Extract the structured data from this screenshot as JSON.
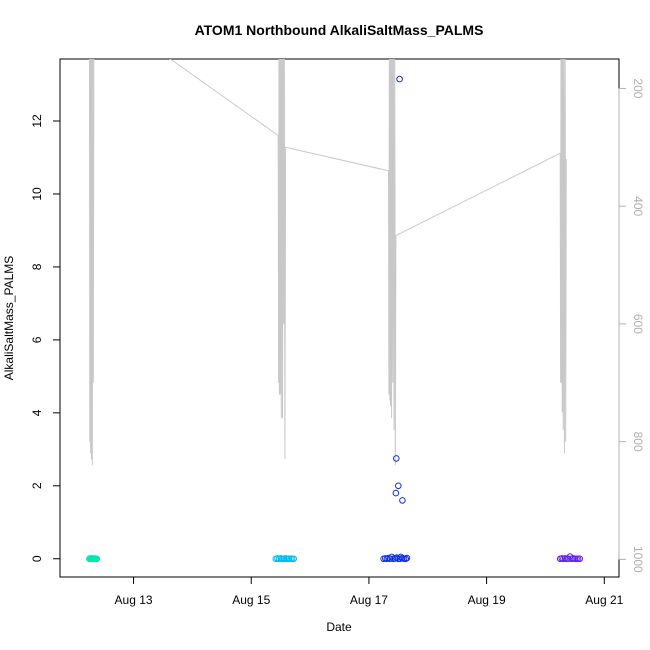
{
  "chart_data": {
    "type": "scatter",
    "title": "ATOM1 Northbound AlkaliSaltMass_PALMS",
    "xlabel": "Date",
    "ylabel": "AlkaliSaltMass_PALMS",
    "xlim": [
      "2018-08-11T18:00",
      "2018-08-21T06:00"
    ],
    "ylim": [
      -0.5,
      13.7
    ],
    "y_ticks": [
      0,
      2,
      4,
      6,
      8,
      10,
      12
    ],
    "x_ticks": [
      {
        "date": "2018-08-13",
        "label": "Aug 13"
      },
      {
        "date": "2018-08-15",
        "label": "Aug 15"
      },
      {
        "date": "2018-08-17",
        "label": "Aug 17"
      },
      {
        "date": "2018-08-19",
        "label": "Aug 19"
      },
      {
        "date": "2018-08-21",
        "label": "Aug 21"
      }
    ],
    "secondary_axis": {
      "side": "right",
      "reversed": true,
      "ylim": [
        1030,
        150
      ],
      "ticks": [
        200,
        400,
        600,
        800,
        1000
      ],
      "color": "#b0b0b0"
    },
    "secondary_line": {
      "color": "#c8c8c8",
      "points": [
        [
          "2018-08-12T06:00",
          50
        ],
        [
          "2018-08-12T06:10",
          800
        ],
        [
          "2018-08-12T06:20",
          70
        ],
        [
          "2018-08-12T06:30",
          820
        ],
        [
          "2018-08-12T06:40",
          90
        ],
        [
          "2018-08-12T06:50",
          830
        ],
        [
          "2018-08-12T07:00",
          100
        ],
        [
          "2018-08-12T07:10",
          840
        ],
        [
          "2018-08-12T07:20",
          110
        ],
        [
          "2018-08-12T07:35",
          700
        ],
        [
          "2018-08-12T07:50",
          100
        ],
        [
          "2018-08-13T15:00",
          150
        ],
        [
          "2018-08-15T11:00",
          280
        ],
        [
          "2018-08-15T11:10",
          700
        ],
        [
          "2018-08-15T11:20",
          90
        ],
        [
          "2018-08-15T11:30",
          720
        ],
        [
          "2018-08-15T11:40",
          80
        ],
        [
          "2018-08-15T11:50",
          720
        ],
        [
          "2018-08-15T12:00",
          90
        ],
        [
          "2018-08-15T12:15",
          760
        ],
        [
          "2018-08-15T12:30",
          80
        ],
        [
          "2018-08-15T12:45",
          760
        ],
        [
          "2018-08-15T13:00",
          90
        ],
        [
          "2018-08-15T13:15",
          600
        ],
        [
          "2018-08-15T13:30",
          80
        ],
        [
          "2018-08-15T13:45",
          830
        ],
        [
          "2018-08-15T14:00",
          300
        ],
        [
          "2018-08-17T08:00",
          340
        ],
        [
          "2018-08-17T08:10",
          720
        ],
        [
          "2018-08-17T08:20",
          70
        ],
        [
          "2018-08-17T08:30",
          730
        ],
        [
          "2018-08-17T08:40",
          80
        ],
        [
          "2018-08-17T08:50",
          740
        ],
        [
          "2018-08-17T09:00",
          60
        ],
        [
          "2018-08-17T09:15",
          760
        ],
        [
          "2018-08-17T09:30",
          80
        ],
        [
          "2018-08-17T09:45",
          700
        ],
        [
          "2018-08-17T10:00",
          90
        ],
        [
          "2018-08-17T10:15",
          780
        ],
        [
          "2018-08-17T10:30",
          70
        ],
        [
          "2018-08-17T10:45",
          840
        ],
        [
          "2018-08-17T11:00",
          450
        ],
        [
          "2018-08-20T06:00",
          310
        ],
        [
          "2018-08-20T06:10",
          700
        ],
        [
          "2018-08-20T06:20",
          90
        ],
        [
          "2018-08-20T06:30",
          700
        ],
        [
          "2018-08-20T06:40",
          80
        ],
        [
          "2018-08-20T06:50",
          750
        ],
        [
          "2018-08-20T07:00",
          100
        ],
        [
          "2018-08-20T07:15",
          780
        ],
        [
          "2018-08-20T07:30",
          90
        ],
        [
          "2018-08-20T07:45",
          820
        ],
        [
          "2018-08-20T08:00",
          80
        ],
        [
          "2018-08-20T08:15",
          800
        ],
        [
          "2018-08-20T08:30",
          320
        ]
      ]
    },
    "series": [
      {
        "color": "#00e5b0",
        "points": [
          [
            "2018-08-12T06:00",
            0.0
          ],
          [
            "2018-08-12T06:20",
            0.01
          ],
          [
            "2018-08-12T06:40",
            0.0
          ],
          [
            "2018-08-12T07:00",
            0.01
          ],
          [
            "2018-08-12T07:20",
            0.0
          ],
          [
            "2018-08-12T07:40",
            0.0
          ],
          [
            "2018-08-12T08:00",
            0.01
          ],
          [
            "2018-08-12T08:20",
            0.0
          ],
          [
            "2018-08-12T08:40",
            0.0
          ],
          [
            "2018-08-12T09:00",
            0.0
          ]
        ]
      },
      {
        "color": "#00b8f0",
        "points": [
          [
            "2018-08-15T10:00",
            0.0
          ],
          [
            "2018-08-15T10:40",
            0.01
          ],
          [
            "2018-08-15T11:20",
            0.0
          ],
          [
            "2018-08-15T12:00",
            0.01
          ],
          [
            "2018-08-15T12:40",
            0.0
          ],
          [
            "2018-08-15T13:20",
            0.0
          ],
          [
            "2018-08-15T14:00",
            0.01
          ],
          [
            "2018-08-15T14:40",
            0.0
          ],
          [
            "2018-08-15T15:20",
            0.0
          ],
          [
            "2018-08-15T16:00",
            0.0
          ],
          [
            "2018-08-15T16:40",
            0.0
          ],
          [
            "2018-08-15T17:20",
            0.0
          ]
        ]
      },
      {
        "color": "#1030e0",
        "points": [
          [
            "2018-08-17T06:00",
            0.0
          ],
          [
            "2018-08-17T06:40",
            0.01
          ],
          [
            "2018-08-17T07:20",
            0.0
          ],
          [
            "2018-08-17T08:00",
            0.02
          ],
          [
            "2018-08-17T08:40",
            0.0
          ],
          [
            "2018-08-17T09:20",
            0.05
          ],
          [
            "2018-08-17T10:00",
            0.0
          ],
          [
            "2018-08-17T10:40",
            0.01
          ],
          [
            "2018-08-17T11:20",
            0.03
          ],
          [
            "2018-08-17T12:00",
            0.0
          ],
          [
            "2018-08-17T12:40",
            0.0
          ],
          [
            "2018-08-17T13:00",
            0.05
          ],
          [
            "2018-08-17T13:40",
            0.02
          ],
          [
            "2018-08-17T14:20",
            0.0
          ],
          [
            "2018-08-17T15:00",
            0.0
          ],
          [
            "2018-08-17T15:30",
            0.02
          ],
          [
            "2018-08-17T12:30",
            13.15
          ],
          [
            "2018-08-17T11:10",
            2.75
          ],
          [
            "2018-08-17T12:00",
            2.0
          ],
          [
            "2018-08-17T11:00",
            1.8
          ],
          [
            "2018-08-17T13:40",
            1.6
          ]
        ]
      },
      {
        "color": "#6020e8",
        "points": [
          [
            "2018-08-20T06:00",
            0.0
          ],
          [
            "2018-08-20T06:40",
            0.01
          ],
          [
            "2018-08-20T07:20",
            0.0
          ],
          [
            "2018-08-20T08:00",
            0.01
          ],
          [
            "2018-08-20T08:40",
            0.0
          ],
          [
            "2018-08-20T09:20",
            0.0
          ],
          [
            "2018-08-20T10:00",
            0.06
          ],
          [
            "2018-08-20T10:40",
            0.0
          ],
          [
            "2018-08-20T11:20",
            0.01
          ],
          [
            "2018-08-20T12:00",
            0.0
          ],
          [
            "2018-08-20T12:40",
            0.0
          ],
          [
            "2018-08-20T13:20",
            0.0
          ],
          [
            "2018-08-20T14:00",
            0.0
          ]
        ]
      }
    ],
    "grid": false,
    "legend": "none"
  }
}
